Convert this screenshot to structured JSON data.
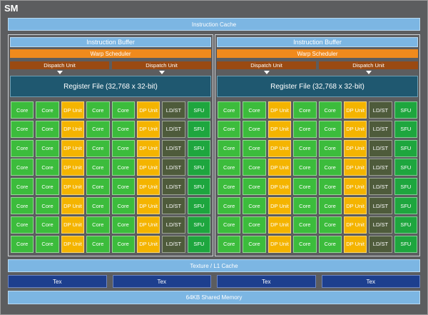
{
  "title": "SM",
  "instruction_cache": "Instruction Cache",
  "partitions": [
    {
      "instruction_buffer": "Instruction Buffer",
      "warp_scheduler": "Warp Scheduler",
      "dispatch_units": [
        "Dispatch Unit",
        "Dispatch Unit"
      ],
      "register_file": "Register File (32,768 x 32-bit)",
      "rows": [
        [
          "Core",
          "Core",
          "DP Unit",
          "Core",
          "Core",
          "DP Unit",
          "LD/ST",
          "SFU"
        ],
        [
          "Core",
          "Core",
          "DP Unit",
          "Core",
          "Core",
          "DP Unit",
          "LD/ST",
          "SFU"
        ],
        [
          "Core",
          "Core",
          "DP Unit",
          "Core",
          "Core",
          "DP Unit",
          "LD/ST",
          "SFU"
        ],
        [
          "Core",
          "Core",
          "DP Unit",
          "Core",
          "Core",
          "DP Unit",
          "LD/ST",
          "SFU"
        ],
        [
          "Core",
          "Core",
          "DP Unit",
          "Core",
          "Core",
          "DP Unit",
          "LD/ST",
          "SFU"
        ],
        [
          "Core",
          "Core",
          "DP Unit",
          "Core",
          "Core",
          "DP Unit",
          "LD/ST",
          "SFU"
        ],
        [
          "Core",
          "Core",
          "DP Unit",
          "Core",
          "Core",
          "DP Unit",
          "LD/ST",
          "SFU"
        ],
        [
          "Core",
          "Core",
          "DP Unit",
          "Core",
          "Core",
          "DP Unit",
          "LD/ST",
          "SFU"
        ]
      ]
    },
    {
      "instruction_buffer": "Instruction Buffer",
      "warp_scheduler": "Warp Scheduler",
      "dispatch_units": [
        "Dispatch Unit",
        "Dispatch Unit"
      ],
      "register_file": "Register File (32,768 x 32-bit)",
      "rows": [
        [
          "Core",
          "Core",
          "DP Unit",
          "Core",
          "Core",
          "DP Unit",
          "LD/ST",
          "SFU"
        ],
        [
          "Core",
          "Core",
          "DP Unit",
          "Core",
          "Core",
          "DP Unit",
          "LD/ST",
          "SFU"
        ],
        [
          "Core",
          "Core",
          "DP Unit",
          "Core",
          "Core",
          "DP Unit",
          "LD/ST",
          "SFU"
        ],
        [
          "Core",
          "Core",
          "DP Unit",
          "Core",
          "Core",
          "DP Unit",
          "LD/ST",
          "SFU"
        ],
        [
          "Core",
          "Core",
          "DP Unit",
          "Core",
          "Core",
          "DP Unit",
          "LD/ST",
          "SFU"
        ],
        [
          "Core",
          "Core",
          "DP Unit",
          "Core",
          "Core",
          "DP Unit",
          "LD/ST",
          "SFU"
        ],
        [
          "Core",
          "Core",
          "DP Unit",
          "Core",
          "Core",
          "DP Unit",
          "LD/ST",
          "SFU"
        ],
        [
          "Core",
          "Core",
          "DP Unit",
          "Core",
          "Core",
          "DP Unit",
          "LD/ST",
          "SFU"
        ]
      ]
    }
  ],
  "texture_cache": "Texture / L1 Cache",
  "tex_units": [
    "Tex",
    "Tex",
    "Tex",
    "Tex"
  ],
  "shared_memory": "64KB Shared Memory"
}
